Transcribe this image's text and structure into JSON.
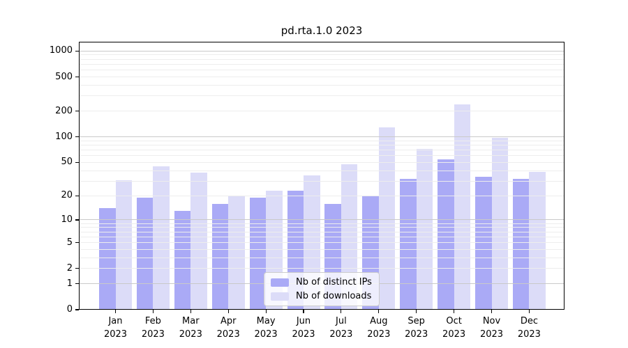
{
  "chart_data": {
    "type": "bar",
    "title": "pd.rta.1.0 2023",
    "categories": [
      "Jan 2023",
      "Feb 2023",
      "Mar 2023",
      "Apr 2023",
      "May 2023",
      "Jun 2023",
      "Jul 2023",
      "Aug 2023",
      "Sep 2023",
      "Oct 2023",
      "Nov 2023",
      "Dec 2023"
    ],
    "series": [
      {
        "name": "Nb of distinct IPs",
        "color": "#aaaaf6",
        "values": [
          14,
          19,
          13,
          16,
          19,
          23,
          16,
          20,
          32,
          54,
          34,
          32
        ]
      },
      {
        "name": "Nb of downloads",
        "color": "#dcdcf8",
        "values": [
          31,
          45,
          38,
          20,
          23,
          35,
          48,
          130,
          72,
          240,
          98,
          39
        ]
      }
    ],
    "yticks": [
      0,
      1,
      2,
      5,
      10,
      20,
      50,
      100,
      200,
      500,
      1000
    ],
    "scale": "log1p",
    "ylim": [
      0,
      1280
    ],
    "xlabel": "",
    "ylabel": "",
    "grid": true,
    "legend_position": "bottom-center"
  }
}
